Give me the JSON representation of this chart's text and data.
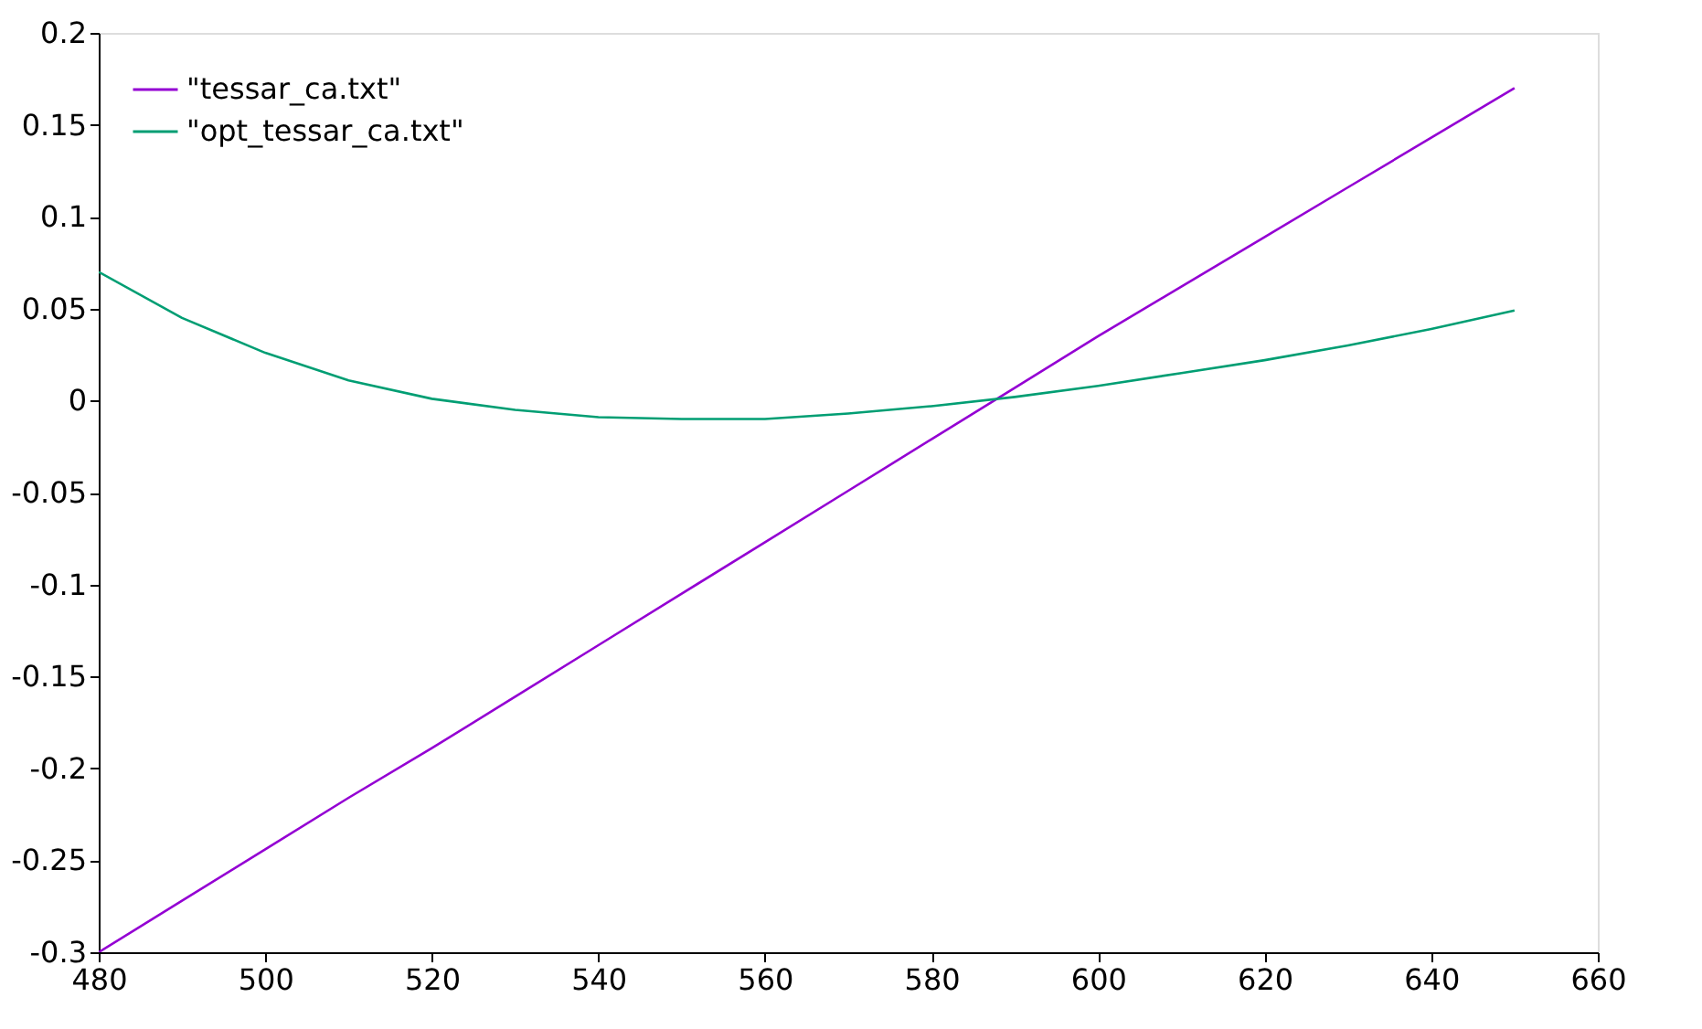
{
  "chart_data": {
    "type": "line",
    "x": [
      480,
      490,
      500,
      510,
      520,
      530,
      540,
      550,
      560,
      570,
      580,
      590,
      600,
      610,
      620,
      630,
      640,
      650
    ],
    "series": [
      {
        "name": "\"tessar_ca.txt\"",
        "color": "#9400d3",
        "values": [
          -0.3,
          -0.272,
          -0.244,
          -0.216,
          -0.189,
          -0.161,
          -0.133,
          -0.105,
          -0.077,
          -0.049,
          -0.021,
          0.007,
          0.035,
          0.062,
          0.089,
          0.116,
          0.143,
          0.17
        ]
      },
      {
        "name": "\"opt_tessar_ca.txt\"",
        "color": "#009e73",
        "values": [
          0.07,
          0.045,
          0.026,
          0.011,
          0.001,
          -0.005,
          -0.009,
          -0.01,
          -0.01,
          -0.007,
          -0.003,
          0.002,
          0.008,
          0.015,
          0.022,
          0.03,
          0.039,
          0.049
        ]
      }
    ],
    "xlim": [
      480,
      660
    ],
    "xticks": [
      480,
      500,
      520,
      540,
      560,
      580,
      600,
      620,
      640,
      660
    ],
    "ylim": [
      -0.3,
      0.2
    ],
    "yticks": [
      -0.3,
      -0.25,
      -0.2,
      -0.15,
      -0.1,
      -0.05,
      0,
      0.05,
      0.1,
      0.15,
      0.2
    ],
    "grid": false,
    "legend": "top left",
    "marker": "none",
    "line_style": "solid"
  }
}
